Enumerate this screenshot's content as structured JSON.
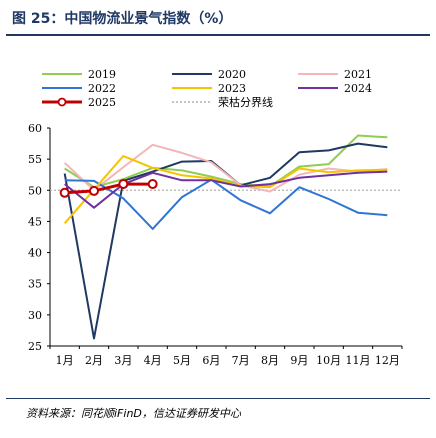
{
  "header": {
    "title": "图 25：中国物流业景气指数（%）"
  },
  "footer": {
    "source": "资料来源：同花顺iFinD，信达证券研发中心"
  },
  "chart_data": {
    "type": "line",
    "categories": [
      "1月",
      "2月",
      "3月",
      "4月",
      "5月",
      "6月",
      "7月",
      "8月",
      "9月",
      "10月",
      "11月",
      "12月"
    ],
    "ylim": [
      25,
      60
    ],
    "yticks": [
      25,
      30,
      35,
      40,
      45,
      50,
      55,
      60
    ],
    "grid": false,
    "legend_position": "top",
    "reference_line": {
      "name": "荣枯分界线",
      "value": 50,
      "color": "#b0b0b0"
    },
    "series": [
      {
        "name": "2019",
        "color": "#8fce4f",
        "values": [
          53.5,
          50.5,
          51.8,
          53.6,
          53.2,
          52.2,
          51.0,
          50.6,
          53.8,
          54.2,
          58.8,
          58.5
        ]
      },
      {
        "name": "2020",
        "color": "#1f3864",
        "values": [
          52.7,
          26.2,
          51.5,
          53.0,
          54.6,
          54.7,
          50.8,
          52.0,
          56.1,
          56.4,
          57.5,
          56.9
        ]
      },
      {
        "name": "2021",
        "color": "#f4b6b6",
        "values": [
          54.4,
          50.0,
          53.7,
          57.3,
          56.0,
          54.5,
          50.8,
          49.8,
          52.5,
          53.5,
          53.0,
          53.4
        ]
      },
      {
        "name": "2022",
        "color": "#2e75d6",
        "values": [
          51.6,
          51.5,
          48.7,
          43.8,
          48.9,
          51.7,
          48.4,
          46.3,
          50.5,
          48.6,
          46.4,
          46.0
        ]
      },
      {
        "name": "2023",
        "color": "#f5c400",
        "values": [
          44.7,
          50.1,
          55.5,
          53.6,
          52.4,
          51.9,
          50.7,
          50.5,
          53.5,
          52.9,
          53.2,
          53.3
        ]
      },
      {
        "name": "2024",
        "color": "#7030a0",
        "values": [
          51.0,
          47.2,
          51.0,
          52.8,
          51.6,
          51.6,
          50.6,
          51.0,
          52.0,
          52.4,
          52.8,
          53.0
        ]
      },
      {
        "name": "2025",
        "color": "#c00000",
        "marker": "circle",
        "values": [
          49.6,
          49.9,
          51.0,
          51.0,
          null,
          null,
          null,
          null,
          null,
          null,
          null,
          null
        ]
      }
    ]
  }
}
